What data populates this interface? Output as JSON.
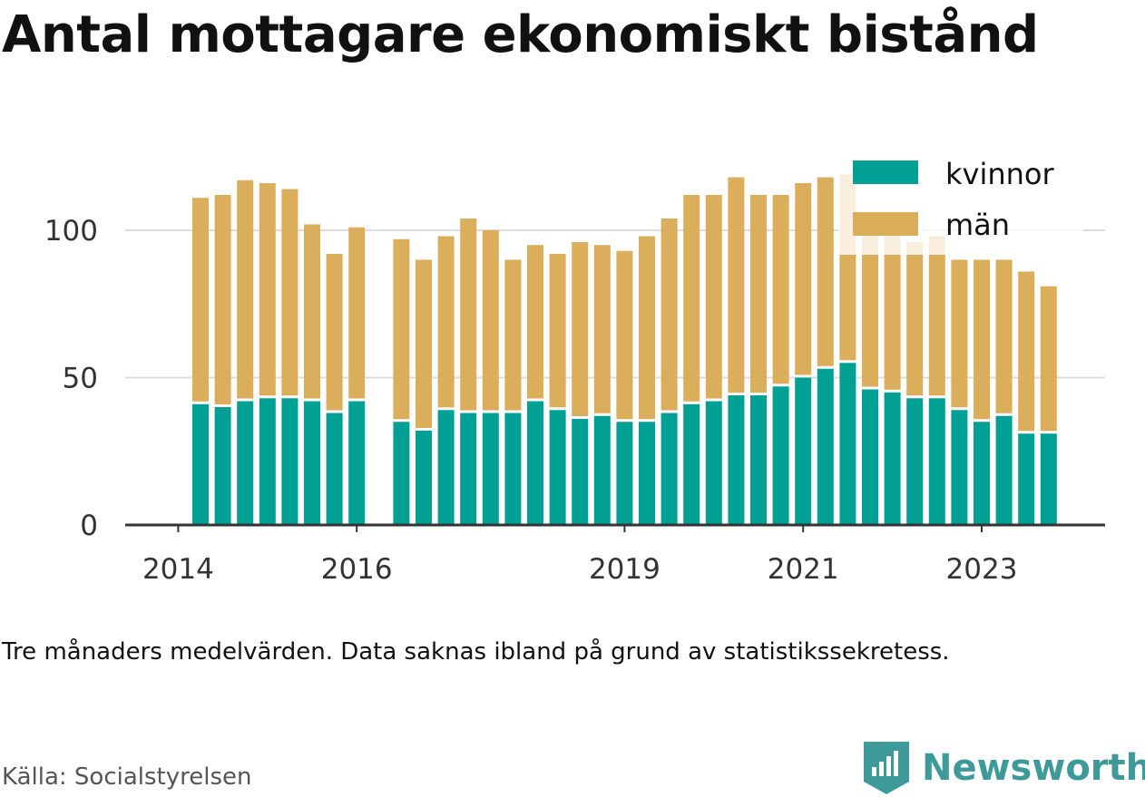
{
  "title": "Antal mottagare ekonomiskt bistånd",
  "note": "Tre månaders medelvärden. Data saknas ibland på grund av statistikssekretess.",
  "source": "Källa: Socialstyrelsen",
  "brand": "Newsworthy",
  "colors": {
    "kvinnor": "#00a095",
    "man": "#daae5a",
    "grid": "#dddddd",
    "axis": "#333333"
  },
  "chart_data": {
    "type": "bar",
    "stacked": true,
    "x_start": "2014-04",
    "x_step_months": 3,
    "categories_note_missing": "null = data missing",
    "series": [
      {
        "name": "kvinnor",
        "values": [
          41,
          40,
          42,
          43,
          43,
          42,
          38,
          42,
          null,
          35,
          32,
          39,
          38,
          38,
          38,
          42,
          39,
          36,
          37,
          35,
          35,
          38,
          41,
          42,
          44,
          44,
          47,
          50,
          53,
          55,
          46,
          45,
          43,
          43,
          39,
          35,
          37,
          31,
          31
        ]
      },
      {
        "name": "män",
        "values": [
          70,
          72,
          75,
          73,
          71,
          60,
          54,
          59,
          null,
          62,
          58,
          59,
          66,
          62,
          52,
          53,
          53,
          60,
          58,
          58,
          63,
          66,
          71,
          70,
          74,
          68,
          65,
          66,
          65,
          64,
          52,
          53,
          53,
          55,
          51,
          55,
          53,
          55,
          50
        ]
      }
    ],
    "xlabel": "",
    "ylabel": "",
    "x_ticks": [
      {
        "label": "2014",
        "date": "2014-01"
      },
      {
        "label": "2016",
        "date": "2016-01"
      },
      {
        "label": "2019",
        "date": "2019-01"
      },
      {
        "label": "2021",
        "date": "2021-01"
      },
      {
        "label": "2023",
        "date": "2023-01"
      }
    ],
    "y_ticks": [
      0,
      50,
      100
    ],
    "ylim": [
      0,
      122
    ],
    "grid": true,
    "legend": "top-right"
  }
}
